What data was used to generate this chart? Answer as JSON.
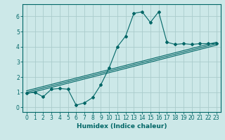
{
  "xlabel": "Humidex (Indice chaleur)",
  "background_color": "#cce8e8",
  "grid_color": "#aacccc",
  "line_color": "#006666",
  "xlim": [
    -0.5,
    23.5
  ],
  "ylim": [
    -0.3,
    6.8
  ],
  "xticks": [
    0,
    1,
    2,
    3,
    4,
    5,
    6,
    7,
    8,
    9,
    10,
    11,
    12,
    13,
    14,
    15,
    16,
    17,
    18,
    19,
    20,
    21,
    22,
    23
  ],
  "yticks": [
    0,
    1,
    2,
    3,
    4,
    5,
    6
  ],
  "curve1_x": [
    0,
    1,
    2,
    3,
    4,
    5,
    6,
    7,
    8,
    9,
    10,
    11,
    12,
    13,
    14,
    15,
    16,
    17,
    18,
    19,
    20,
    21,
    22,
    23
  ],
  "curve1_y": [
    0.95,
    1.0,
    0.7,
    1.2,
    1.25,
    1.2,
    0.15,
    0.3,
    0.65,
    1.5,
    2.6,
    4.0,
    4.7,
    6.2,
    6.3,
    5.6,
    6.3,
    4.3,
    4.15,
    4.2,
    4.15,
    4.2,
    4.2,
    4.2
  ],
  "line2_x": [
    0,
    23
  ],
  "line2_y": [
    1.0,
    4.2
  ],
  "line3_x": [
    0,
    23
  ],
  "line3_y": [
    0.9,
    4.1
  ],
  "line4_x": [
    0,
    23
  ],
  "line4_y": [
    1.1,
    4.3
  ],
  "xlabel_fontsize": 6.5,
  "xlabel_fontweight": "bold",
  "tick_fontsize": 5.5
}
